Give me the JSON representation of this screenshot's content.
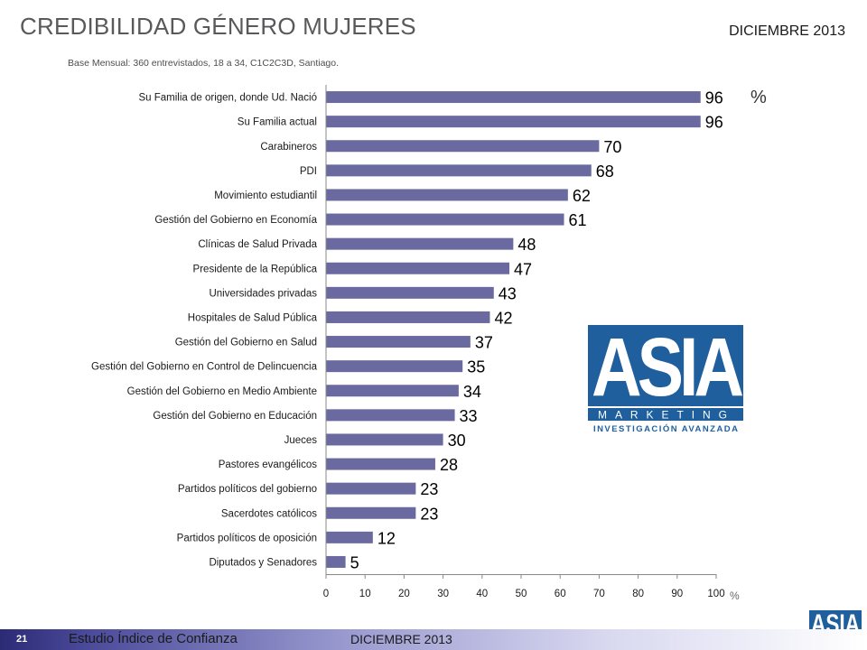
{
  "header": {
    "title": "CREDIBILIDAD GÉNERO MUJERES",
    "date": "DICIEMBRE 2013",
    "subtitle": "Base Mensual: 360 entrevistados, 18 a 34, C1C2C3D, Santiago."
  },
  "chart_data": {
    "type": "bar",
    "orientation": "horizontal",
    "categories": [
      "Su Familia de origen, donde Ud. Nació",
      "Su Familia actual",
      "Carabineros",
      "PDI",
      "Movimiento estudiantil",
      "Gestión del Gobierno en Economía",
      "Clínicas de Salud Privada",
      "Presidente de la República",
      "Universidades privadas",
      "Hospitales de Salud Pública",
      "Gestión del Gobierno en Salud",
      "Gestión del Gobierno en Control de Delincuencia",
      "Gestión del Gobierno en Medio Ambiente",
      "Gestión del Gobierno en Educación",
      "Jueces",
      "Pastores evangélicos",
      "Partidos políticos del gobierno",
      "Sacerdotes católicos",
      "Partidos políticos de oposición",
      "Diputados y Senadores"
    ],
    "values": [
      96,
      96,
      70,
      68,
      62,
      61,
      48,
      47,
      43,
      42,
      37,
      35,
      34,
      33,
      30,
      28,
      23,
      23,
      12,
      5
    ],
    "xlim": [
      0,
      100
    ],
    "xticks": [
      0,
      10,
      20,
      30,
      40,
      50,
      60,
      70,
      80,
      90,
      100
    ],
    "x_unit": "%",
    "top_unit": "%",
    "bar_color": "#6b6aa0",
    "grid": false
  },
  "logo": {
    "main_text": "ASIA",
    "band_text": "MARKETING",
    "tagline": "INVESTIGACIÓN AVANZADA",
    "color": "#1f5f9e"
  },
  "footer": {
    "page_number": "21",
    "study": "Estudio  Índice de Confianza",
    "date": "DICIEMBRE 2013"
  }
}
